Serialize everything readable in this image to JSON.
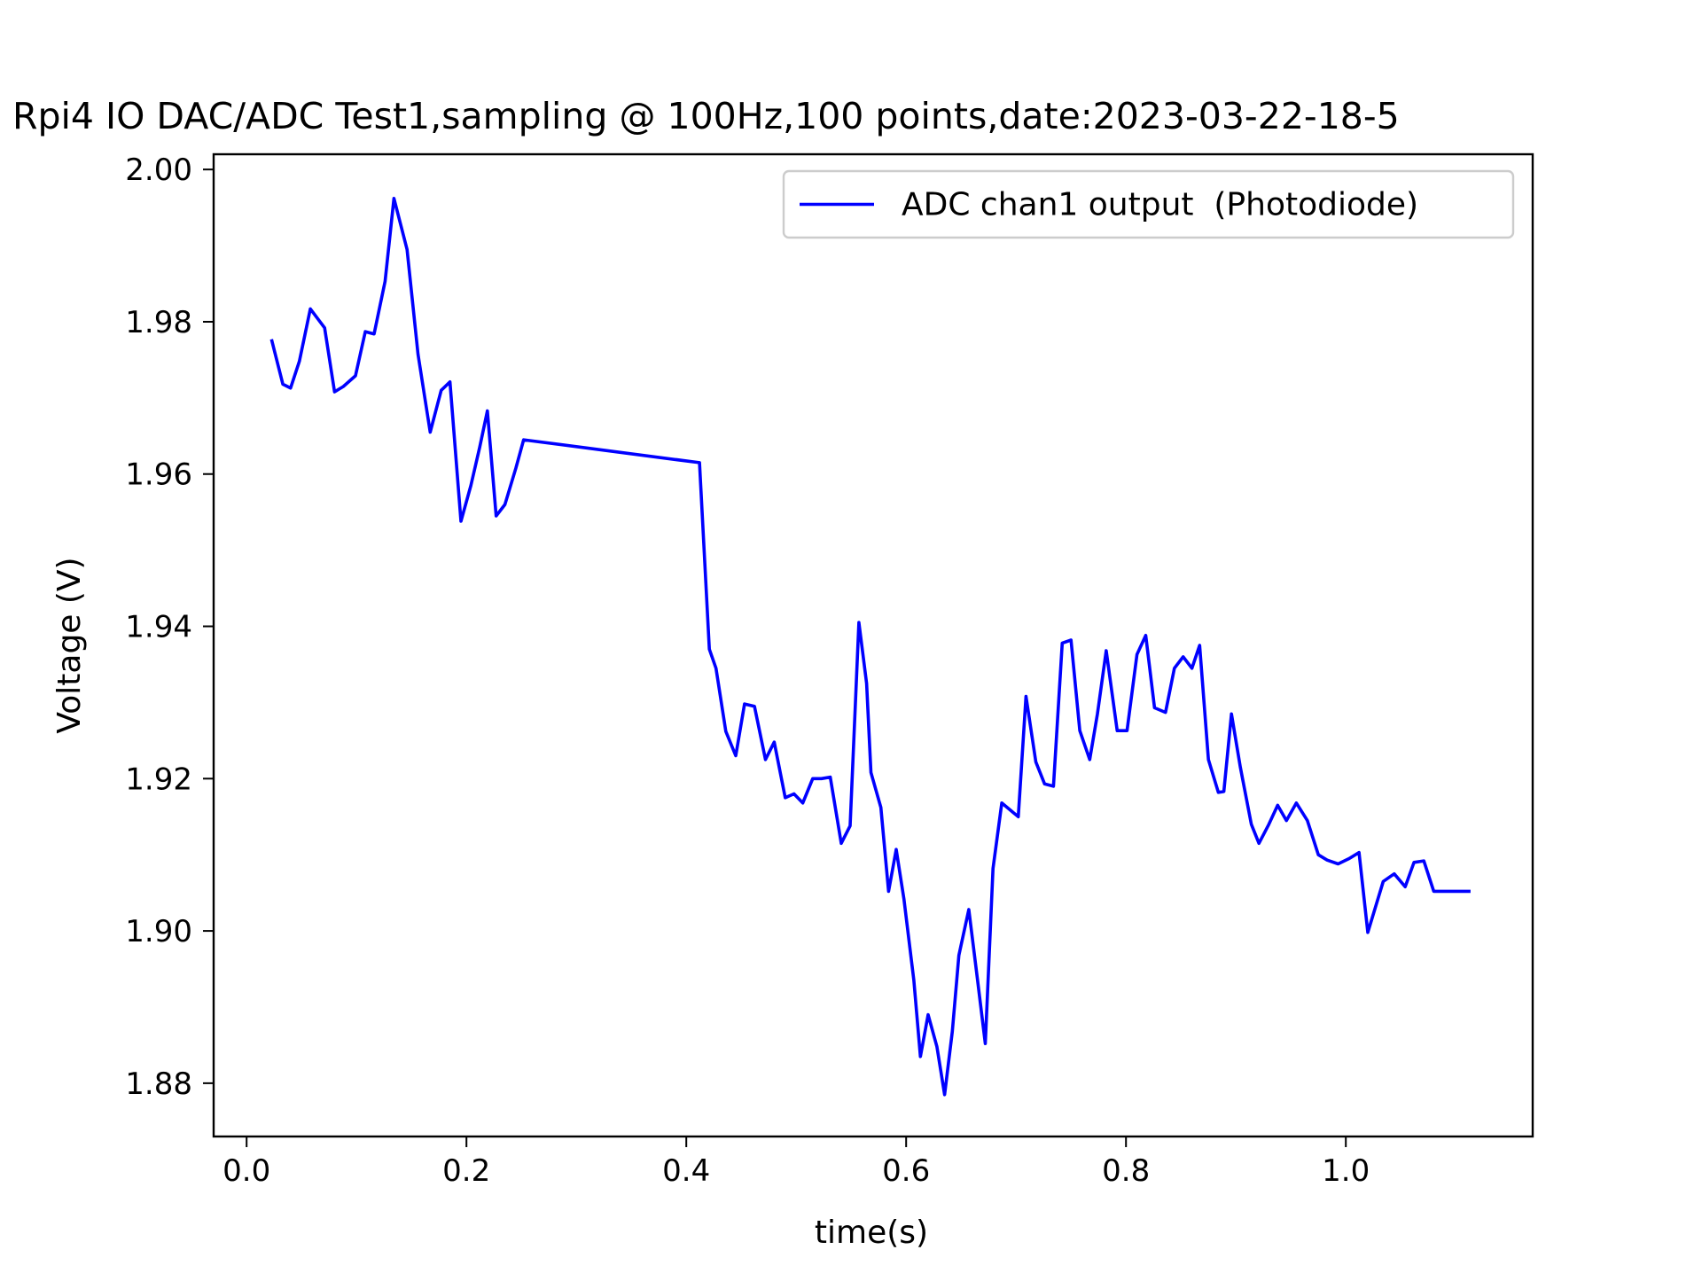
{
  "chart_data": {
    "type": "line",
    "title": "Rpi4 IO DAC/ADC Test1,sampling @ 100Hz,100 points,date:2023-03-22-18-5",
    "xlabel": "time(s)",
    "ylabel": "Voltage (V)",
    "xlim": [
      -0.03,
      1.17
    ],
    "ylim": [
      1.873,
      2.002
    ],
    "xticks": [
      0.0,
      0.2,
      0.4,
      0.6,
      0.8,
      1.0
    ],
    "xtick_labels": [
      "0.0",
      "0.2",
      "0.4",
      "0.6",
      "0.8",
      "1.0"
    ],
    "yticks": [
      1.88,
      1.9,
      1.92,
      1.94,
      1.96,
      1.98,
      2.0
    ],
    "ytick_labels": [
      "1.88",
      "1.90",
      "1.92",
      "1.94",
      "1.96",
      "1.98",
      "2.00"
    ],
    "grid": false,
    "legend": {
      "position": "upper-right"
    },
    "series": [
      {
        "name": "ADC chan1 output  (Photodiode)",
        "color": "#0000ff",
        "x": [
          0.023,
          0.033,
          0.04,
          0.048,
          0.058,
          0.071,
          0.08,
          0.088,
          0.099,
          0.108,
          0.116,
          0.126,
          0.134,
          0.146,
          0.156,
          0.167,
          0.177,
          0.185,
          0.195,
          0.204,
          0.212,
          0.219,
          0.227,
          0.235,
          0.245,
          0.252,
          0.412,
          0.421,
          0.427,
          0.436,
          0.445,
          0.453,
          0.462,
          0.472,
          0.48,
          0.49,
          0.498,
          0.506,
          0.515,
          0.523,
          0.531,
          0.541,
          0.549,
          0.557,
          0.564,
          0.568,
          0.577,
          0.584,
          0.591,
          0.598,
          0.607,
          0.613,
          0.62,
          0.628,
          0.635,
          0.642,
          0.648,
          0.657,
          0.665,
          0.672,
          0.679,
          0.687,
          0.702,
          0.709,
          0.718,
          0.726,
          0.734,
          0.742,
          0.75,
          0.758,
          0.767,
          0.774,
          0.782,
          0.792,
          0.801,
          0.81,
          0.818,
          0.826,
          0.836,
          0.844,
          0.852,
          0.86,
          0.867,
          0.875,
          0.884,
          0.889,
          0.896,
          0.904,
          0.914,
          0.921,
          0.93,
          0.938,
          0.946,
          0.955,
          0.965,
          0.975,
          0.983,
          0.993,
          1.003,
          1.012,
          1.02,
          1.034,
          1.044,
          1.054,
          1.062,
          1.071,
          1.08,
          1.088,
          1.097,
          1.105,
          1.112
        ],
        "y": [
          1.9775,
          1.9718,
          1.9713,
          1.9748,
          1.9817,
          1.9792,
          1.9708,
          1.9715,
          1.9729,
          1.9787,
          1.9784,
          1.9853,
          1.9962,
          1.9895,
          1.9757,
          1.9655,
          1.971,
          1.9721,
          1.9538,
          1.9585,
          1.9635,
          1.9683,
          1.9545,
          1.956,
          1.9608,
          1.9645,
          1.9615,
          1.937,
          1.9345,
          1.9262,
          1.923,
          1.9298,
          1.9295,
          1.9225,
          1.9248,
          1.9175,
          1.918,
          1.9168,
          1.92,
          1.92,
          1.9202,
          1.9115,
          1.9138,
          1.9405,
          1.9325,
          1.9208,
          1.9162,
          1.9052,
          1.9107,
          1.9042,
          1.8935,
          1.8835,
          1.889,
          1.8848,
          1.8785,
          1.8868,
          1.8968,
          1.9028,
          1.8935,
          1.8852,
          1.9082,
          1.9168,
          1.915,
          1.9308,
          1.9222,
          1.9193,
          1.919,
          1.9378,
          1.9382,
          1.9263,
          1.9225,
          1.9285,
          1.9368,
          1.9263,
          1.9263,
          1.9363,
          1.9388,
          1.9293,
          1.9287,
          1.9345,
          1.936,
          1.9345,
          1.9375,
          1.9225,
          1.9182,
          1.9183,
          1.9285,
          1.9215,
          1.914,
          1.9115,
          1.914,
          1.9165,
          1.9145,
          1.9168,
          1.9145,
          1.91,
          1.9093,
          1.9088,
          1.9095,
          1.9103,
          1.8998,
          1.9065,
          1.9075,
          1.9058,
          1.909,
          1.9092,
          1.9052,
          1.9052,
          1.9052,
          1.9052,
          1.9052
        ]
      }
    ]
  }
}
